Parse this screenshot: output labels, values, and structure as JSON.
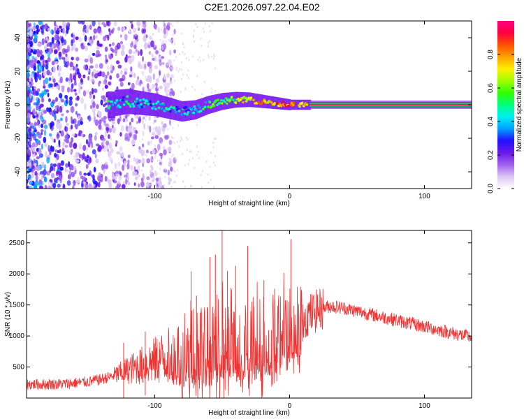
{
  "figure_title": "C2E1.2026.097.22.04.E02",
  "chart_data": [
    {
      "type": "heatmap",
      "title": "C2E1.2026.097.22.04.E02",
      "xlabel": "Height of straight line (km)",
      "ylabel": "Frequency (Hz)",
      "xlim": [
        -195,
        135
      ],
      "ylim": [
        -50,
        50
      ],
      "xticks": [
        -100,
        0,
        100
      ],
      "xtick_labels": [
        "-100",
        "0",
        "100"
      ],
      "yticks": [
        -40,
        -20,
        0,
        20,
        40
      ],
      "ytick_labels": [
        "-40",
        "-20",
        "0",
        "20",
        "40"
      ],
      "colorbar": {
        "label": "Normalized spectral amplitude",
        "range": [
          0,
          1
        ],
        "ticks": [
          0.0,
          0.2,
          0.4,
          0.6,
          0.8
        ],
        "tick_labels": [
          "0.0",
          "0.2",
          "0.4",
          "0.6",
          "0.8"
        ],
        "colors": [
          "#ffffff",
          "#dcc8f4",
          "#a060f0",
          "#6a18e8",
          "#2010ff",
          "#00a0ff",
          "#00f0f0",
          "#00ff80",
          "#30ff00",
          "#a0ff00",
          "#fff000",
          "#ffa000",
          "#ff5000",
          "#ff0040",
          "#ff0080"
        ]
      },
      "ridge": [
        {
          "x": -130,
          "y": 1,
          "amp": 0.35
        },
        {
          "x": -120,
          "y": 2,
          "amp": 0.45
        },
        {
          "x": -110,
          "y": 1,
          "amp": 0.4
        },
        {
          "x": -100,
          "y": 0,
          "amp": 0.42
        },
        {
          "x": -90,
          "y": -2,
          "amp": 0.45
        },
        {
          "x": -80,
          "y": -4,
          "amp": 0.42
        },
        {
          "x": -70,
          "y": -3,
          "amp": 0.45
        },
        {
          "x": -60,
          "y": 0,
          "amp": 0.5
        },
        {
          "x": -50,
          "y": 2,
          "amp": 0.55
        },
        {
          "x": -40,
          "y": 3,
          "amp": 0.6
        },
        {
          "x": -30,
          "y": 3,
          "amp": 0.7
        },
        {
          "x": -20,
          "y": 2,
          "amp": 0.75
        },
        {
          "x": -10,
          "y": 1,
          "amp": 0.8
        },
        {
          "x": 0,
          "y": 0,
          "amp": 0.85
        },
        {
          "x": 15,
          "y": 0,
          "amp": 0.7
        },
        {
          "x": 135,
          "y": 0,
          "amp": 0.6
        }
      ]
    },
    {
      "type": "line",
      "xlabel": "Height of straight line (km)",
      "ylabel": "SNR (10 * v/v)",
      "xlim": [
        -195,
        135
      ],
      "ylim": [
        0,
        2700
      ],
      "xticks": [
        -100,
        0,
        100
      ],
      "xtick_labels": [
        "-100",
        "0",
        "100"
      ],
      "yticks": [
        500,
        1000,
        1500,
        2000,
        2500
      ],
      "ytick_labels": [
        "500",
        "1000",
        "1500",
        "2000",
        "2500"
      ],
      "color": "#ee3333",
      "series": [
        {
          "name": "SNR",
          "x": [
            -195,
            -180,
            -165,
            -150,
            -140,
            -130,
            -120,
            -110,
            -100,
            -90,
            -80,
            -75,
            -70,
            -60,
            -55,
            -50,
            -45,
            -40,
            -35,
            -30,
            -25,
            -20,
            -15,
            -10,
            -5,
            0,
            5,
            10,
            15,
            20,
            25,
            30,
            40,
            50,
            60,
            70,
            80,
            90,
            100,
            110,
            120,
            135
          ],
          "values": [
            220,
            220,
            230,
            260,
            300,
            360,
            450,
            520,
            600,
            680,
            750,
            800,
            850,
            900,
            950,
            950,
            950,
            950,
            950,
            950,
            1000,
            1000,
            1050,
            1100,
            1150,
            1200,
            1250,
            1300,
            1350,
            1400,
            1450,
            1480,
            1450,
            1400,
            1350,
            1300,
            1250,
            1200,
            1150,
            1100,
            1050,
            980
          ]
        }
      ],
      "spikes": [
        {
          "x": -123,
          "y": 890
        },
        {
          "x": -107,
          "y": 1070
        },
        {
          "x": -73,
          "y": 2040
        },
        {
          "x": -69,
          "y": 1650
        },
        {
          "x": -59,
          "y": 2270
        },
        {
          "x": -55,
          "y": 2310
        },
        {
          "x": -50,
          "y": 2700
        },
        {
          "x": -46,
          "y": 2050
        },
        {
          "x": -40,
          "y": 2130
        },
        {
          "x": -31,
          "y": 2450
        },
        {
          "x": -19,
          "y": 1900
        },
        {
          "x": -11,
          "y": 1760
        },
        {
          "x": 1,
          "y": 2560
        },
        {
          "x": 8,
          "y": 1300
        }
      ]
    }
  ]
}
